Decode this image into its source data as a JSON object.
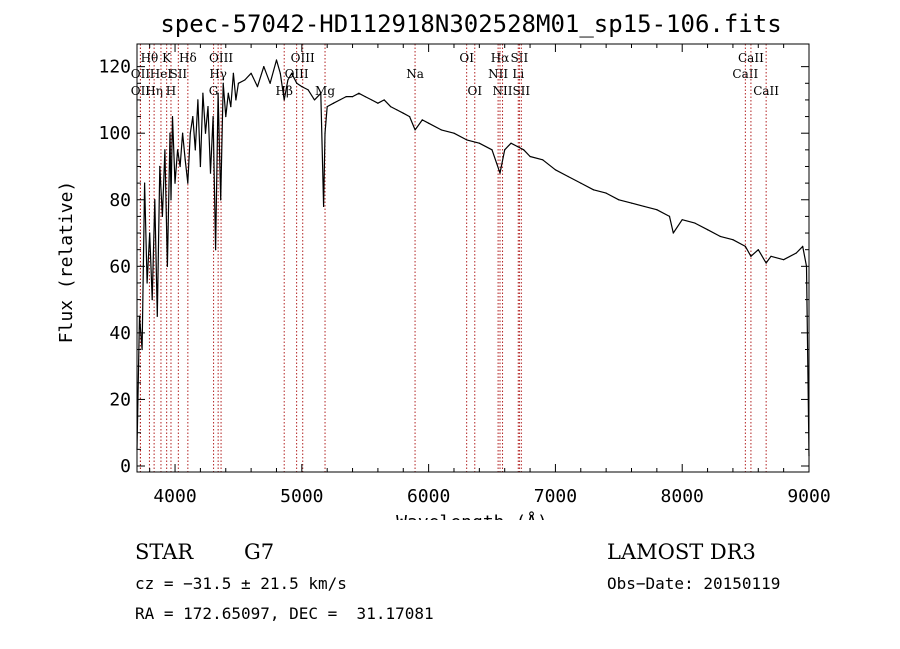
{
  "chart_data": {
    "type": "line",
    "title": "spec-57042-HD112918N302528M01_sp15-106.fits",
    "xlabel": "Wavelength (Å)",
    "ylabel": "Flux (relative)",
    "xlim": [
      3700,
      9000
    ],
    "ylim": [
      0,
      125
    ],
    "xticks": [
      4000,
      5000,
      6000,
      7000,
      8000,
      9000
    ],
    "yticks": [
      0,
      20,
      40,
      60,
      80,
      100,
      120
    ],
    "series": [
      {
        "name": "flux",
        "x": [
          3700,
          3720,
          3740,
          3760,
          3780,
          3800,
          3820,
          3840,
          3860,
          3880,
          3900,
          3920,
          3940,
          3960,
          3968,
          3980,
          4000,
          4020,
          4040,
          4060,
          4080,
          4101,
          4120,
          4140,
          4160,
          4180,
          4200,
          4220,
          4240,
          4260,
          4280,
          4300,
          4320,
          4340,
          4360,
          4380,
          4400,
          4420,
          4440,
          4460,
          4480,
          4500,
          4550,
          4600,
          4650,
          4700,
          4750,
          4800,
          4830,
          4861,
          4890,
          4920,
          4960,
          5000,
          5050,
          5100,
          5150,
          5172,
          5183,
          5200,
          5250,
          5300,
          5350,
          5400,
          5450,
          5500,
          5550,
          5600,
          5650,
          5700,
          5750,
          5800,
          5850,
          5893,
          5950,
          6000,
          6100,
          6200,
          6300,
          6400,
          6500,
          6563,
          6600,
          6650,
          6700,
          6750,
          6800,
          6900,
          7000,
          7100,
          7200,
          7300,
          7400,
          7500,
          7600,
          7700,
          7800,
          7900,
          7930,
          8000,
          8100,
          8200,
          8300,
          8400,
          8498,
          8542,
          8600,
          8662,
          8700,
          8800,
          8900,
          8950,
          8980,
          9000
        ],
        "values": [
          5,
          45,
          35,
          85,
          55,
          70,
          50,
          80,
          45,
          90,
          75,
          95,
          60,
          100,
          80,
          105,
          85,
          95,
          90,
          100,
          92,
          85,
          100,
          105,
          95,
          110,
          90,
          112,
          100,
          108,
          88,
          105,
          65,
          112,
          80,
          115,
          105,
          112,
          108,
          118,
          110,
          115,
          116,
          118,
          114,
          120,
          115,
          122,
          118,
          110,
          116,
          118,
          115,
          114,
          113,
          110,
          112,
          78,
          100,
          108,
          109,
          110,
          111,
          111,
          112,
          111,
          110,
          109,
          110,
          108,
          107,
          106,
          105,
          101,
          104,
          103,
          101,
          100,
          98,
          97,
          95,
          88,
          95,
          97,
          96,
          95,
          93,
          92,
          89,
          87,
          85,
          83,
          82,
          80,
          79,
          78,
          77,
          75,
          70,
          74,
          73,
          71,
          69,
          68,
          66,
          63,
          65,
          61,
          63,
          62,
          64,
          66,
          60,
          3
        ]
      }
    ],
    "lines": [
      {
        "wl": 3727,
        "label": "OII",
        "row": 3
      },
      {
        "wl": 3727,
        "label": "OII",
        "row": 2
      },
      {
        "wl": 3798,
        "label": "Hθ",
        "row": 1
      },
      {
        "wl": 3835,
        "label": "Hη",
        "row": 3
      },
      {
        "wl": 3889,
        "label": "HeI",
        "row": 2
      },
      {
        "wl": 3934,
        "label": "K",
        "row": 1
      },
      {
        "wl": 3968,
        "label": "H",
        "row": 3
      },
      {
        "wl": 4026,
        "label": "SII",
        "row": 2
      },
      {
        "wl": 4101,
        "label": "Hδ",
        "row": 1
      },
      {
        "wl": 4304,
        "label": "G",
        "row": 3
      },
      {
        "wl": 4340,
        "label": "Hγ",
        "row": 2
      },
      {
        "wl": 4363,
        "label": "OIII",
        "row": 1
      },
      {
        "wl": 4861,
        "label": "Hβ",
        "row": 3
      },
      {
        "wl": 4959,
        "label": "OIII",
        "row": 2
      },
      {
        "wl": 5007,
        "label": "OIII",
        "row": 1
      },
      {
        "wl": 5183,
        "label": "Mg",
        "row": 3
      },
      {
        "wl": 5893,
        "label": "Na",
        "row": 2
      },
      {
        "wl": 6300,
        "label": "OI",
        "row": 1
      },
      {
        "wl": 6364,
        "label": "OI",
        "row": 3
      },
      {
        "wl": 6548,
        "label": "NII",
        "row": 2
      },
      {
        "wl": 6563,
        "label": "Hα",
        "row": 1
      },
      {
        "wl": 6583,
        "label": "NII",
        "row": 3
      },
      {
        "wl": 6707,
        "label": "Li",
        "row": 2
      },
      {
        "wl": 6716,
        "label": "SII",
        "row": 1
      },
      {
        "wl": 6731,
        "label": "SII",
        "row": 3
      },
      {
        "wl": 8498,
        "label": "CaII",
        "row": 2
      },
      {
        "wl": 8542,
        "label": "CaII",
        "row": 1
      },
      {
        "wl": 8662,
        "label": "CaII",
        "row": 3
      }
    ]
  },
  "info": {
    "class_label": "STAR",
    "subclass": "G7",
    "cz": "cz = −31.5 ± 21.5 km/s",
    "coords": "RA = 172.65097, DEC =  31.17081",
    "survey": "LAMOST DR3",
    "obs_date": "Obs−Date: 20150119"
  },
  "colors": {
    "spectrum": "#000000",
    "line_marker": "#b22222",
    "axis": "#000000"
  }
}
